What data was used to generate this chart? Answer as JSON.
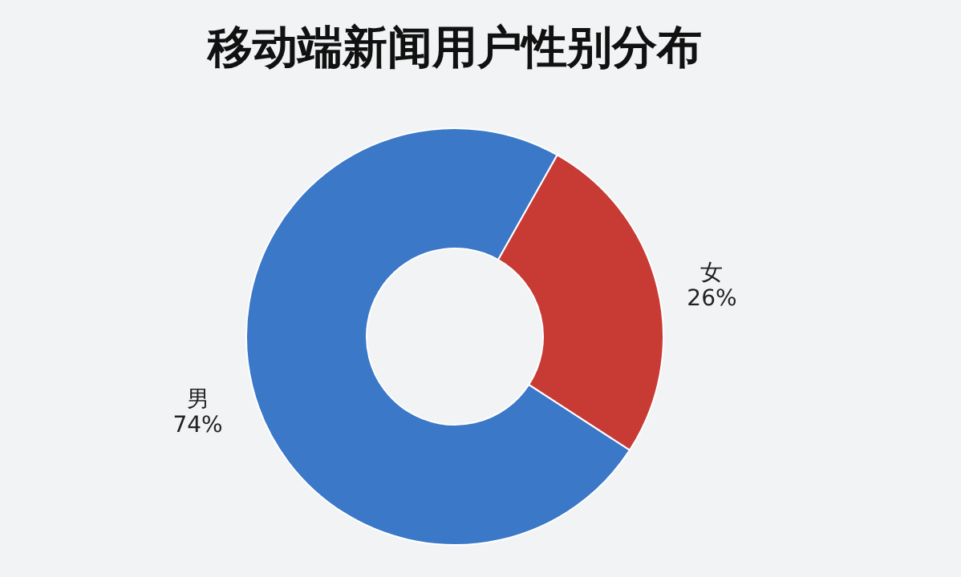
{
  "chart_data": {
    "type": "donut",
    "title": "移动端新闻用户性别分布",
    "categories": [
      "男",
      "女"
    ],
    "values": [
      74,
      26
    ],
    "colors": [
      "#3b78c8",
      "#c83b35"
    ],
    "value_labels": [
      "74%",
      "26%"
    ],
    "legend": false
  }
}
